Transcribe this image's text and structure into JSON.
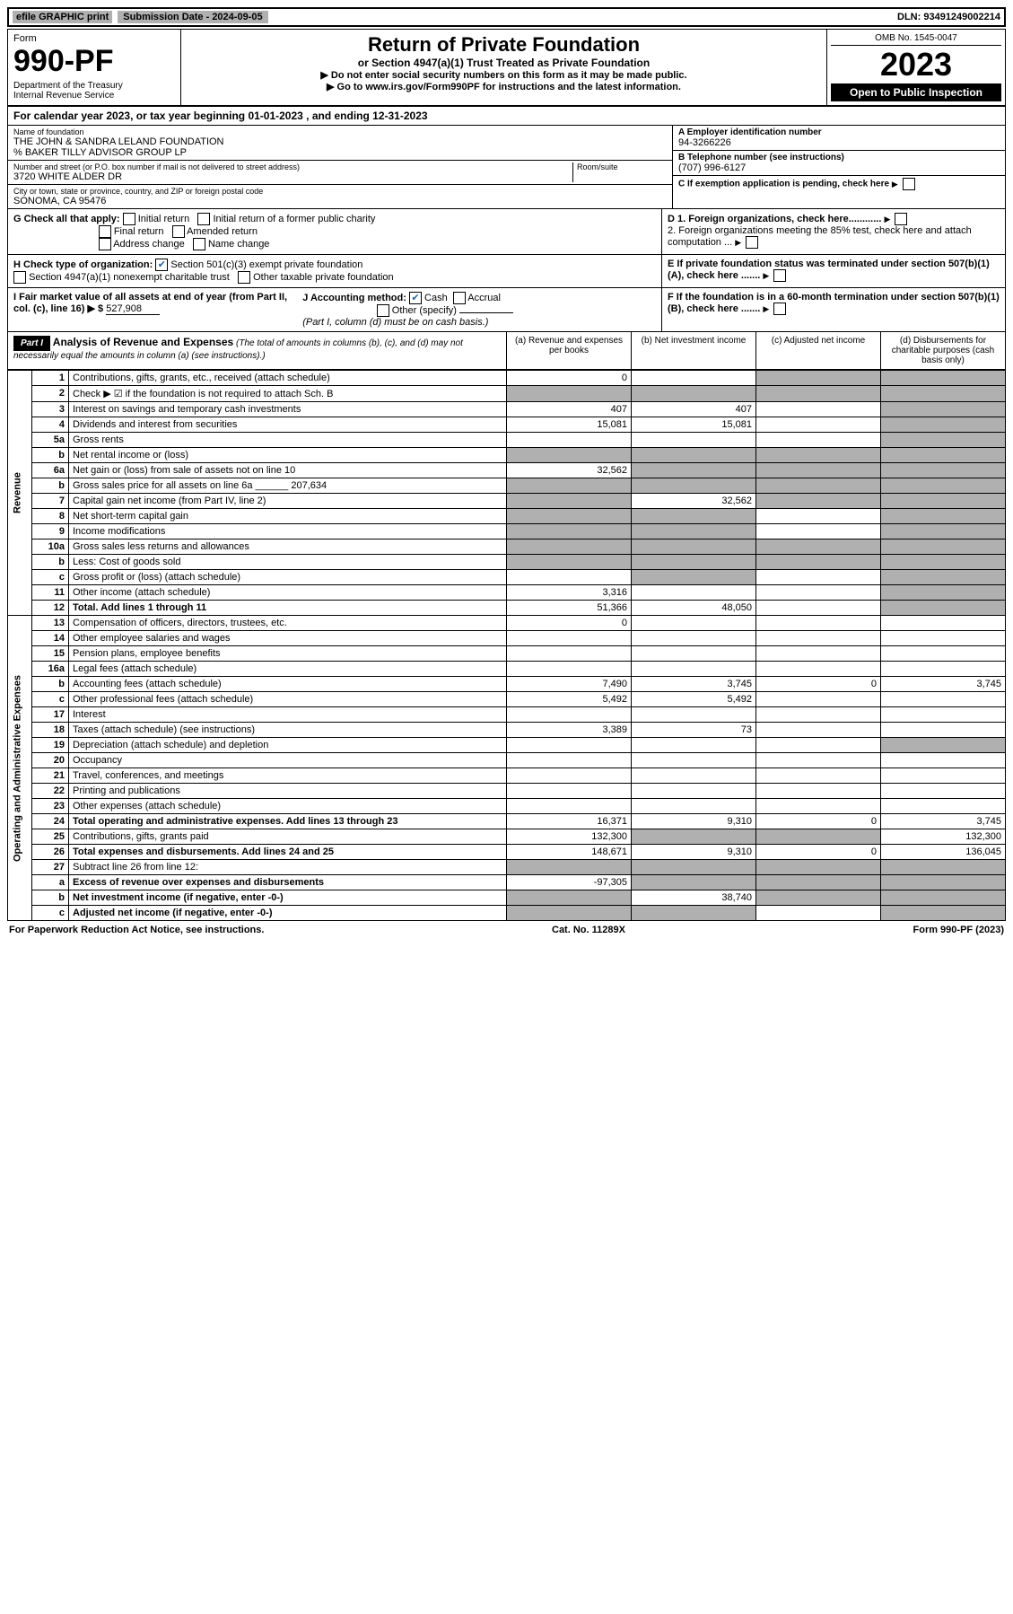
{
  "top": {
    "efile": "efile GRAPHIC print",
    "submission": "Submission Date - 2024-09-05",
    "dln": "DLN: 93491249002214"
  },
  "header": {
    "form_label": "Form",
    "form_no": "990-PF",
    "dept": "Department of the Treasury\nInternal Revenue Service",
    "title": "Return of Private Foundation",
    "subtitle": "or Section 4947(a)(1) Trust Treated as Private Foundation",
    "note1": "▶ Do not enter social security numbers on this form as it may be made public.",
    "note2": "▶ Go to www.irs.gov/Form990PF for instructions and the latest information.",
    "omb": "OMB No. 1545-0047",
    "year": "2023",
    "open": "Open to Public Inspection"
  },
  "calendar": "For calendar year 2023, or tax year beginning 01-01-2023           , and ending 12-31-2023",
  "entity": {
    "name_label": "Name of foundation",
    "name": "THE JOHN & SANDRA LELAND FOUNDATION",
    "care_of": "% BAKER TILLY ADVISOR GROUP LP",
    "addr_label": "Number and street (or P.O. box number if mail is not delivered to street address)",
    "addr": "3720 WHITE ALDER DR",
    "room_label": "Room/suite",
    "city_label": "City or town, state or province, country, and ZIP or foreign postal code",
    "city": "SONOMA, CA  95476",
    "ein_label": "A Employer identification number",
    "ein": "94-3266226",
    "phone_label": "B Telephone number (see instructions)",
    "phone": "(707) 996-6127",
    "c": "C If exemption application is pending, check here",
    "d1": "D 1. Foreign organizations, check here............",
    "d2": "2. Foreign organizations meeting the 85% test, check here and attach computation ...",
    "e": "E  If private foundation status was terminated under section 507(b)(1)(A), check here .......",
    "f": "F  If the foundation is in a 60-month termination under section 507(b)(1)(B), check here .......",
    "g": "G Check all that apply:",
    "g_opts": [
      "Initial return",
      "Initial return of a former public charity",
      "Final return",
      "Amended return",
      "Address change",
      "Name change"
    ],
    "h": "H Check type of organization:",
    "h1": "Section 501(c)(3) exempt private foundation",
    "h2": "Section 4947(a)(1) nonexempt charitable trust",
    "h3": "Other taxable private foundation",
    "i": "I Fair market value of all assets at end of year (from Part II, col. (c), line 16) ▶ $",
    "i_val": "527,908",
    "j": "J Accounting method:",
    "j_cash": "Cash",
    "j_accrual": "Accrual",
    "j_other": "Other (specify)",
    "j_note": "(Part I, column (d) must be on cash basis.)"
  },
  "part1": {
    "label": "Part I",
    "title": "Analysis of Revenue and Expenses",
    "title_note": "(The total of amounts in columns (b), (c), and (d) may not necessarily equal the amounts in column (a) (see instructions).)",
    "col_a": "(a) Revenue and expenses per books",
    "col_b": "(b) Net investment income",
    "col_c": "(c) Adjusted net income",
    "col_d": "(d) Disbursements for charitable purposes (cash basis only)"
  },
  "side": {
    "revenue": "Revenue",
    "expenses": "Operating and Administrative Expenses"
  },
  "rows": [
    {
      "n": "1",
      "d": "Contributions, gifts, grants, etc., received (attach schedule)",
      "a": "0",
      "b": "",
      "c": "s",
      "dd": "s"
    },
    {
      "n": "2",
      "d": "Check ▶ ☑ if the foundation is not required to attach Sch. B",
      "a": "s",
      "b": "s",
      "c": "s",
      "dd": "s",
      "bold": false
    },
    {
      "n": "3",
      "d": "Interest on savings and temporary cash investments",
      "a": "407",
      "b": "407",
      "c": "",
      "dd": "s"
    },
    {
      "n": "4",
      "d": "Dividends and interest from securities",
      "a": "15,081",
      "b": "15,081",
      "c": "",
      "dd": "s"
    },
    {
      "n": "5a",
      "d": "Gross rents",
      "a": "",
      "b": "",
      "c": "",
      "dd": "s"
    },
    {
      "n": "b",
      "d": "Net rental income or (loss)",
      "a": "s",
      "b": "s",
      "c": "s",
      "dd": "s"
    },
    {
      "n": "6a",
      "d": "Net gain or (loss) from sale of assets not on line 10",
      "a": "32,562",
      "b": "s",
      "c": "s",
      "dd": "s"
    },
    {
      "n": "b",
      "d": "Gross sales price for all assets on line 6a ______ 207,634",
      "a": "s",
      "b": "s",
      "c": "s",
      "dd": "s"
    },
    {
      "n": "7",
      "d": "Capital gain net income (from Part IV, line 2)",
      "a": "s",
      "b": "32,562",
      "c": "s",
      "dd": "s"
    },
    {
      "n": "8",
      "d": "Net short-term capital gain",
      "a": "s",
      "b": "s",
      "c": "",
      "dd": "s"
    },
    {
      "n": "9",
      "d": "Income modifications",
      "a": "s",
      "b": "s",
      "c": "",
      "dd": "s"
    },
    {
      "n": "10a",
      "d": "Gross sales less returns and allowances",
      "a": "s",
      "b": "s",
      "c": "s",
      "dd": "s"
    },
    {
      "n": "b",
      "d": "Less: Cost of goods sold",
      "a": "s",
      "b": "s",
      "c": "s",
      "dd": "s"
    },
    {
      "n": "c",
      "d": "Gross profit or (loss) (attach schedule)",
      "a": "",
      "b": "s",
      "c": "",
      "dd": "s"
    },
    {
      "n": "11",
      "d": "Other income (attach schedule)",
      "a": "3,316",
      "b": "",
      "c": "",
      "dd": "s"
    },
    {
      "n": "12",
      "d": "Total. Add lines 1 through 11",
      "a": "51,366",
      "b": "48,050",
      "c": "",
      "dd": "s",
      "bold": true
    },
    {
      "n": "13",
      "d": "Compensation of officers, directors, trustees, etc.",
      "a": "0",
      "b": "",
      "c": "",
      "dd": ""
    },
    {
      "n": "14",
      "d": "Other employee salaries and wages",
      "a": "",
      "b": "",
      "c": "",
      "dd": ""
    },
    {
      "n": "15",
      "d": "Pension plans, employee benefits",
      "a": "",
      "b": "",
      "c": "",
      "dd": ""
    },
    {
      "n": "16a",
      "d": "Legal fees (attach schedule)",
      "a": "",
      "b": "",
      "c": "",
      "dd": ""
    },
    {
      "n": "b",
      "d": "Accounting fees (attach schedule)",
      "a": "7,490",
      "b": "3,745",
      "c": "0",
      "dd": "3,745"
    },
    {
      "n": "c",
      "d": "Other professional fees (attach schedule)",
      "a": "5,492",
      "b": "5,492",
      "c": "",
      "dd": ""
    },
    {
      "n": "17",
      "d": "Interest",
      "a": "",
      "b": "",
      "c": "",
      "dd": ""
    },
    {
      "n": "18",
      "d": "Taxes (attach schedule) (see instructions)",
      "a": "3,389",
      "b": "73",
      "c": "",
      "dd": ""
    },
    {
      "n": "19",
      "d": "Depreciation (attach schedule) and depletion",
      "a": "",
      "b": "",
      "c": "",
      "dd": "s"
    },
    {
      "n": "20",
      "d": "Occupancy",
      "a": "",
      "b": "",
      "c": "",
      "dd": ""
    },
    {
      "n": "21",
      "d": "Travel, conferences, and meetings",
      "a": "",
      "b": "",
      "c": "",
      "dd": ""
    },
    {
      "n": "22",
      "d": "Printing and publications",
      "a": "",
      "b": "",
      "c": "",
      "dd": ""
    },
    {
      "n": "23",
      "d": "Other expenses (attach schedule)",
      "a": "",
      "b": "",
      "c": "",
      "dd": ""
    },
    {
      "n": "24",
      "d": "Total operating and administrative expenses. Add lines 13 through 23",
      "a": "16,371",
      "b": "9,310",
      "c": "0",
      "dd": "3,745",
      "bold": true
    },
    {
      "n": "25",
      "d": "Contributions, gifts, grants paid",
      "a": "132,300",
      "b": "s",
      "c": "s",
      "dd": "132,300"
    },
    {
      "n": "26",
      "d": "Total expenses and disbursements. Add lines 24 and 25",
      "a": "148,671",
      "b": "9,310",
      "c": "0",
      "dd": "136,045",
      "bold": true
    },
    {
      "n": "27",
      "d": "Subtract line 26 from line 12:",
      "a": "s",
      "b": "s",
      "c": "s",
      "dd": "s"
    },
    {
      "n": "a",
      "d": "Excess of revenue over expenses and disbursements",
      "a": "-97,305",
      "b": "s",
      "c": "s",
      "dd": "s",
      "bold": true
    },
    {
      "n": "b",
      "d": "Net investment income (if negative, enter -0-)",
      "a": "s",
      "b": "38,740",
      "c": "s",
      "dd": "s",
      "bold": true
    },
    {
      "n": "c",
      "d": "Adjusted net income (if negative, enter -0-)",
      "a": "s",
      "b": "s",
      "c": "",
      "dd": "s",
      "bold": true
    }
  ],
  "footer": {
    "left": "For Paperwork Reduction Act Notice, see instructions.",
    "mid": "Cat. No. 11289X",
    "right": "Form 990-PF (2023)"
  }
}
